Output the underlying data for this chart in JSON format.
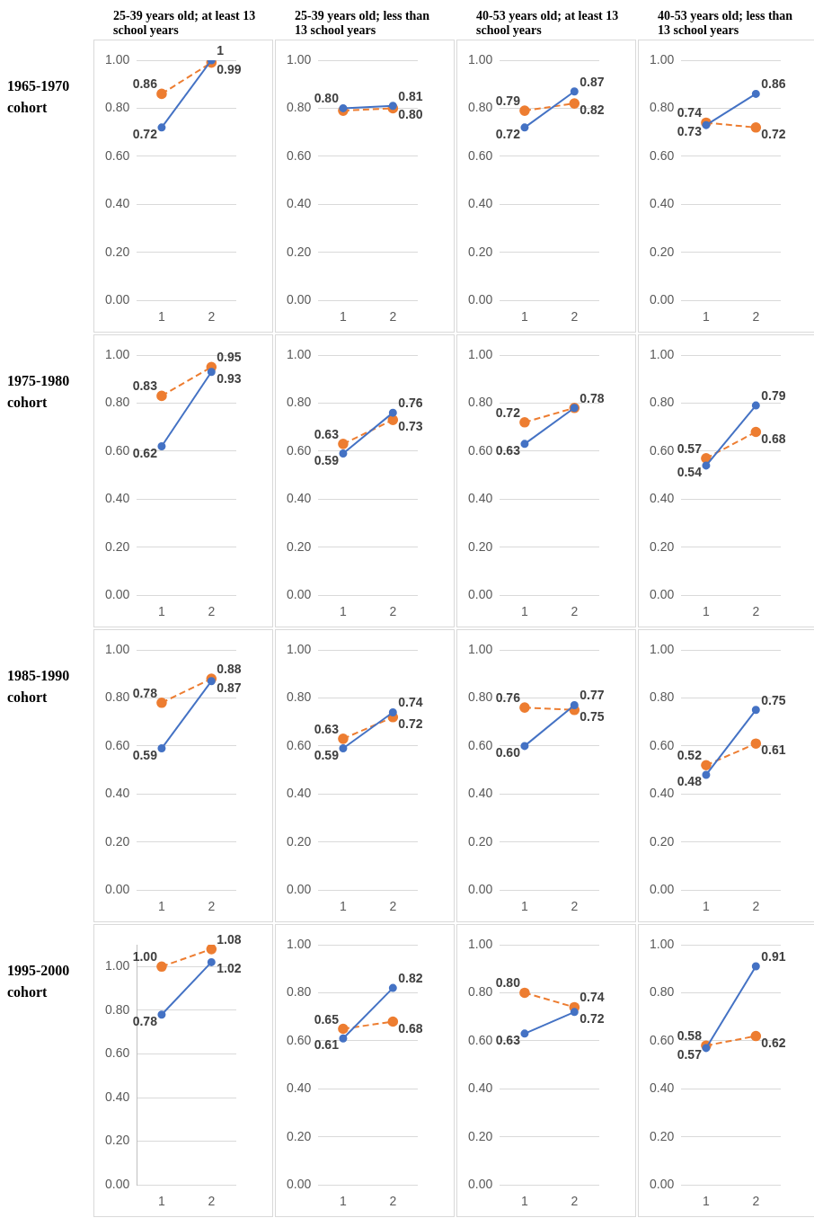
{
  "chart_data": [
    {
      "type": "line",
      "title": "25-39 years old; at least 13 school years",
      "ylabel": "1965-1970 cohort",
      "categories": [
        "1",
        "2"
      ],
      "ylim": [
        0,
        1
      ],
      "yticks": [
        {
          "value": 0,
          "label": "0.00"
        },
        {
          "value": 0.2,
          "label": "0.20"
        },
        {
          "value": 0.4,
          "label": "0.40"
        },
        {
          "value": 0.6,
          "label": "0.60"
        },
        {
          "value": 0.8,
          "label": "0.80"
        },
        {
          "value": 1,
          "label": "1.00"
        }
      ],
      "grid": "y",
      "legend": false,
      "marker": "circle",
      "series": [
        {
          "color": "#4472c4",
          "line_style": "solid",
          "values": [
            0.72,
            1
          ],
          "value_labels": [
            "0.72",
            "1"
          ]
        },
        {
          "color": "#ed7d31",
          "line_style": "dashed",
          "values": [
            0.86,
            0.99
          ],
          "value_labels": [
            "0.86",
            "0.99"
          ]
        }
      ]
    },
    {
      "type": "line",
      "title": "25-39 years old; less than 13 school years",
      "categories": [
        "1",
        "2"
      ],
      "ylim": [
        0,
        1
      ],
      "yticks": [
        {
          "value": 0,
          "label": "0.00"
        },
        {
          "value": 0.2,
          "label": "0.20"
        },
        {
          "value": 0.4,
          "label": "0.40"
        },
        {
          "value": 0.6,
          "label": "0.60"
        },
        {
          "value": 0.8,
          "label": "0.80"
        },
        {
          "value": 1,
          "label": "1.00"
        }
      ],
      "grid": "y",
      "legend": false,
      "marker": "circle",
      "series": [
        {
          "color": "#4472c4",
          "line_style": "solid",
          "values": [
            0.8,
            0.81
          ],
          "value_labels": [
            "0.80",
            "0.81"
          ]
        },
        {
          "color": "#ed7d31",
          "line_style": "dashed",
          "values": [
            0.79,
            0.8
          ],
          "value_labels": [
            null,
            "0.80"
          ]
        }
      ]
    },
    {
      "type": "line",
      "title": "40-53 years old; at least 13 school years",
      "categories": [
        "1",
        "2"
      ],
      "ylim": [
        0,
        1
      ],
      "yticks": [
        {
          "value": 0,
          "label": "0.00"
        },
        {
          "value": 0.2,
          "label": "0.20"
        },
        {
          "value": 0.4,
          "label": "0.40"
        },
        {
          "value": 0.6,
          "label": "0.60"
        },
        {
          "value": 0.8,
          "label": "0.80"
        },
        {
          "value": 1,
          "label": "1.00"
        }
      ],
      "grid": "y",
      "legend": false,
      "marker": "circle",
      "series": [
        {
          "color": "#4472c4",
          "line_style": "solid",
          "values": [
            0.72,
            0.87
          ],
          "value_labels": [
            "0.72",
            "0.87"
          ]
        },
        {
          "color": "#ed7d31",
          "line_style": "dashed",
          "values": [
            0.79,
            0.82
          ],
          "value_labels": [
            "0.79",
            "0.82"
          ]
        }
      ]
    },
    {
      "type": "line",
      "title": "40-53 years old; less than 13 school years",
      "categories": [
        "1",
        "2"
      ],
      "ylim": [
        0,
        1
      ],
      "yticks": [
        {
          "value": 0,
          "label": "0.00"
        },
        {
          "value": 0.2,
          "label": "0.20"
        },
        {
          "value": 0.4,
          "label": "0.40"
        },
        {
          "value": 0.6,
          "label": "0.60"
        },
        {
          "value": 0.8,
          "label": "0.80"
        },
        {
          "value": 1,
          "label": "1.00"
        }
      ],
      "grid": "y",
      "legend": false,
      "marker": "circle",
      "series": [
        {
          "color": "#4472c4",
          "line_style": "solid",
          "values": [
            0.73,
            0.86
          ],
          "value_labels": [
            "0.73",
            "0.86"
          ]
        },
        {
          "color": "#ed7d31",
          "line_style": "dashed",
          "values": [
            0.74,
            0.72
          ],
          "value_labels": [
            "0.74",
            "0.72"
          ]
        }
      ]
    },
    {
      "type": "line",
      "ylabel": "1975-1980 cohort",
      "categories": [
        "1",
        "2"
      ],
      "ylim": [
        0,
        1
      ],
      "yticks": [
        {
          "value": 0,
          "label": "0.00"
        },
        {
          "value": 0.2,
          "label": "0.20"
        },
        {
          "value": 0.4,
          "label": "0.40"
        },
        {
          "value": 0.6,
          "label": "0.60"
        },
        {
          "value": 0.8,
          "label": "0.80"
        },
        {
          "value": 1,
          "label": "1.00"
        }
      ],
      "grid": "y",
      "legend": false,
      "marker": "circle",
      "series": [
        {
          "color": "#4472c4",
          "line_style": "solid",
          "values": [
            0.62,
            0.93
          ],
          "value_labels": [
            "0.62",
            "0.93"
          ]
        },
        {
          "color": "#ed7d31",
          "line_style": "dashed",
          "values": [
            0.83,
            0.95
          ],
          "value_labels": [
            "0.83",
            "0.95"
          ]
        }
      ]
    },
    {
      "type": "line",
      "categories": [
        "1",
        "2"
      ],
      "ylim": [
        0,
        1
      ],
      "yticks": [
        {
          "value": 0,
          "label": "0.00"
        },
        {
          "value": 0.2,
          "label": "0.20"
        },
        {
          "value": 0.4,
          "label": "0.40"
        },
        {
          "value": 0.6,
          "label": "0.60"
        },
        {
          "value": 0.8,
          "label": "0.80"
        },
        {
          "value": 1,
          "label": "1.00"
        }
      ],
      "grid": "y",
      "legend": false,
      "marker": "circle",
      "series": [
        {
          "color": "#4472c4",
          "line_style": "solid",
          "values": [
            0.59,
            0.76
          ],
          "value_labels": [
            "0.59",
            "0.76"
          ]
        },
        {
          "color": "#ed7d31",
          "line_style": "dashed",
          "values": [
            0.63,
            0.73
          ],
          "value_labels": [
            "0.63",
            "0.73"
          ]
        }
      ]
    },
    {
      "type": "line",
      "categories": [
        "1",
        "2"
      ],
      "ylim": [
        0,
        1
      ],
      "yticks": [
        {
          "value": 0,
          "label": "0.00"
        },
        {
          "value": 0.2,
          "label": "0.20"
        },
        {
          "value": 0.4,
          "label": "0.40"
        },
        {
          "value": 0.6,
          "label": "0.60"
        },
        {
          "value": 0.8,
          "label": "0.80"
        },
        {
          "value": 1,
          "label": "1.00"
        }
      ],
      "grid": "y",
      "legend": false,
      "marker": "circle",
      "series": [
        {
          "color": "#4472c4",
          "line_style": "solid",
          "values": [
            0.63,
            0.78
          ],
          "value_labels": [
            "0.63",
            "0.78"
          ]
        },
        {
          "color": "#ed7d31",
          "line_style": "dashed",
          "values": [
            0.72,
            0.78
          ],
          "value_labels": [
            "0.72",
            null
          ]
        }
      ]
    },
    {
      "type": "line",
      "categories": [
        "1",
        "2"
      ],
      "ylim": [
        0,
        1
      ],
      "yticks": [
        {
          "value": 0,
          "label": "0.00"
        },
        {
          "value": 0.2,
          "label": "0.20"
        },
        {
          "value": 0.4,
          "label": "0.40"
        },
        {
          "value": 0.6,
          "label": "0.60"
        },
        {
          "value": 0.8,
          "label": "0.80"
        },
        {
          "value": 1,
          "label": "1.00"
        }
      ],
      "grid": "y",
      "legend": false,
      "marker": "circle",
      "series": [
        {
          "color": "#4472c4",
          "line_style": "solid",
          "values": [
            0.54,
            0.79
          ],
          "value_labels": [
            "0.54",
            "0.79"
          ]
        },
        {
          "color": "#ed7d31",
          "line_style": "dashed",
          "values": [
            0.57,
            0.68
          ],
          "value_labels": [
            "0.57",
            "0.68"
          ]
        }
      ]
    },
    {
      "type": "line",
      "ylabel": "1985-1990 cohort",
      "categories": [
        "1",
        "2"
      ],
      "ylim": [
        0,
        1
      ],
      "yticks": [
        {
          "value": 0,
          "label": "0.00"
        },
        {
          "value": 0.2,
          "label": "0.20"
        },
        {
          "value": 0.4,
          "label": "0.40"
        },
        {
          "value": 0.6,
          "label": "0.60"
        },
        {
          "value": 0.8,
          "label": "0.80"
        },
        {
          "value": 1,
          "label": "1.00"
        }
      ],
      "grid": "y",
      "legend": false,
      "marker": "circle",
      "series": [
        {
          "color": "#4472c4",
          "line_style": "solid",
          "values": [
            0.59,
            0.87
          ],
          "value_labels": [
            "0.59",
            "0.87"
          ]
        },
        {
          "color": "#ed7d31",
          "line_style": "dashed",
          "values": [
            0.78,
            0.88
          ],
          "value_labels": [
            "0.78",
            "0.88"
          ]
        }
      ]
    },
    {
      "type": "line",
      "categories": [
        "1",
        "2"
      ],
      "ylim": [
        0,
        1
      ],
      "yticks": [
        {
          "value": 0,
          "label": "0.00"
        },
        {
          "value": 0.2,
          "label": "0.20"
        },
        {
          "value": 0.4,
          "label": "0.40"
        },
        {
          "value": 0.6,
          "label": "0.60"
        },
        {
          "value": 0.8,
          "label": "0.80"
        },
        {
          "value": 1,
          "label": "1.00"
        }
      ],
      "grid": "y",
      "legend": false,
      "marker": "circle",
      "series": [
        {
          "color": "#4472c4",
          "line_style": "solid",
          "values": [
            0.59,
            0.74
          ],
          "value_labels": [
            "0.59",
            "0.74"
          ]
        },
        {
          "color": "#ed7d31",
          "line_style": "dashed",
          "values": [
            0.63,
            0.72
          ],
          "value_labels": [
            "0.63",
            "0.72"
          ]
        }
      ]
    },
    {
      "type": "line",
      "categories": [
        "1",
        "2"
      ],
      "ylim": [
        0,
        1
      ],
      "yticks": [
        {
          "value": 0,
          "label": "0.00"
        },
        {
          "value": 0.2,
          "label": "0.20"
        },
        {
          "value": 0.4,
          "label": "0.40"
        },
        {
          "value": 0.6,
          "label": "0.60"
        },
        {
          "value": 0.8,
          "label": "0.80"
        },
        {
          "value": 1,
          "label": "1.00"
        }
      ],
      "grid": "y",
      "legend": false,
      "marker": "circle",
      "series": [
        {
          "color": "#4472c4",
          "line_style": "solid",
          "values": [
            0.6,
            0.77
          ],
          "value_labels": [
            "0.60",
            "0.77"
          ]
        },
        {
          "color": "#ed7d31",
          "line_style": "dashed",
          "values": [
            0.76,
            0.75
          ],
          "value_labels": [
            "0.76",
            "0.75"
          ]
        }
      ]
    },
    {
      "type": "line",
      "categories": [
        "1",
        "2"
      ],
      "ylim": [
        0,
        1
      ],
      "yticks": [
        {
          "value": 0,
          "label": "0.00"
        },
        {
          "value": 0.2,
          "label": "0.20"
        },
        {
          "value": 0.4,
          "label": "0.40"
        },
        {
          "value": 0.6,
          "label": "0.60"
        },
        {
          "value": 0.8,
          "label": "0.80"
        },
        {
          "value": 1,
          "label": "1.00"
        }
      ],
      "grid": "y",
      "legend": false,
      "marker": "circle",
      "series": [
        {
          "color": "#4472c4",
          "line_style": "solid",
          "values": [
            0.48,
            0.75
          ],
          "value_labels": [
            "0.48",
            "0.75"
          ]
        },
        {
          "color": "#ed7d31",
          "line_style": "dashed",
          "values": [
            0.52,
            0.61
          ],
          "value_labels": [
            "0.52",
            "0.61"
          ]
        }
      ]
    },
    {
      "type": "line",
      "ylabel": "1995-2000 cohort",
      "categories": [
        "1",
        "2"
      ],
      "ylim": [
        0,
        1.1
      ],
      "yticks": [
        {
          "value": 0,
          "label": "0.00"
        },
        {
          "value": 0.2,
          "label": "0.20"
        },
        {
          "value": 0.4,
          "label": "0.40"
        },
        {
          "value": 0.6,
          "label": "0.60"
        },
        {
          "value": 0.8,
          "label": "0.80"
        },
        {
          "value": 1,
          "label": "1.00"
        }
      ],
      "grid": "y",
      "legend": false,
      "marker": "circle",
      "series": [
        {
          "color": "#4472c4",
          "line_style": "solid",
          "values": [
            0.78,
            1.02
          ],
          "value_labels": [
            "0.78",
            "1.02"
          ]
        },
        {
          "color": "#ed7d31",
          "line_style": "dashed",
          "values": [
            1,
            1.08
          ],
          "value_labels": [
            "1.00",
            "1.08"
          ]
        }
      ]
    },
    {
      "type": "line",
      "categories": [
        "1",
        "2"
      ],
      "ylim": [
        0,
        1
      ],
      "yticks": [
        {
          "value": 0,
          "label": "0.00"
        },
        {
          "value": 0.2,
          "label": "0.20"
        },
        {
          "value": 0.4,
          "label": "0.40"
        },
        {
          "value": 0.6,
          "label": "0.60"
        },
        {
          "value": 0.8,
          "label": "0.80"
        },
        {
          "value": 1,
          "label": "1.00"
        }
      ],
      "grid": "y",
      "legend": false,
      "marker": "circle",
      "series": [
        {
          "color": "#4472c4",
          "line_style": "solid",
          "values": [
            0.61,
            0.82
          ],
          "value_labels": [
            "0.61",
            "0.82"
          ]
        },
        {
          "color": "#ed7d31",
          "line_style": "dashed",
          "values": [
            0.65,
            0.68
          ],
          "value_labels": [
            "0.65",
            "0.68"
          ]
        }
      ]
    },
    {
      "type": "line",
      "categories": [
        "1",
        "2"
      ],
      "ylim": [
        0,
        1
      ],
      "yticks": [
        {
          "value": 0,
          "label": "0.00"
        },
        {
          "value": 0.2,
          "label": "0.20"
        },
        {
          "value": 0.4,
          "label": "0.40"
        },
        {
          "value": 0.6,
          "label": "0.60"
        },
        {
          "value": 0.8,
          "label": "0.80"
        },
        {
          "value": 1,
          "label": "1.00"
        }
      ],
      "grid": "y",
      "legend": false,
      "marker": "circle",
      "series": [
        {
          "color": "#4472c4",
          "line_style": "solid",
          "values": [
            0.63,
            0.72
          ],
          "value_labels": [
            "0.63",
            "0.72"
          ]
        },
        {
          "color": "#ed7d31",
          "line_style": "dashed",
          "values": [
            0.8,
            0.74
          ],
          "value_labels": [
            "0.80",
            "0.74"
          ]
        }
      ]
    },
    {
      "type": "line",
      "categories": [
        "1",
        "2"
      ],
      "ylim": [
        0,
        1
      ],
      "yticks": [
        {
          "value": 0,
          "label": "0.00"
        },
        {
          "value": 0.2,
          "label": "0.20"
        },
        {
          "value": 0.4,
          "label": "0.40"
        },
        {
          "value": 0.6,
          "label": "0.60"
        },
        {
          "value": 0.8,
          "label": "0.80"
        },
        {
          "value": 1,
          "label": "1.00"
        }
      ],
      "grid": "y",
      "legend": false,
      "marker": "circle",
      "series": [
        {
          "color": "#4472c4",
          "line_style": "solid",
          "values": [
            0.57,
            0.91
          ],
          "value_labels": [
            "0.57",
            "0.91"
          ]
        },
        {
          "color": "#ed7d31",
          "line_style": "dashed",
          "values": [
            0.58,
            0.62
          ],
          "value_labels": [
            "0.58",
            "0.62"
          ]
        }
      ]
    }
  ]
}
